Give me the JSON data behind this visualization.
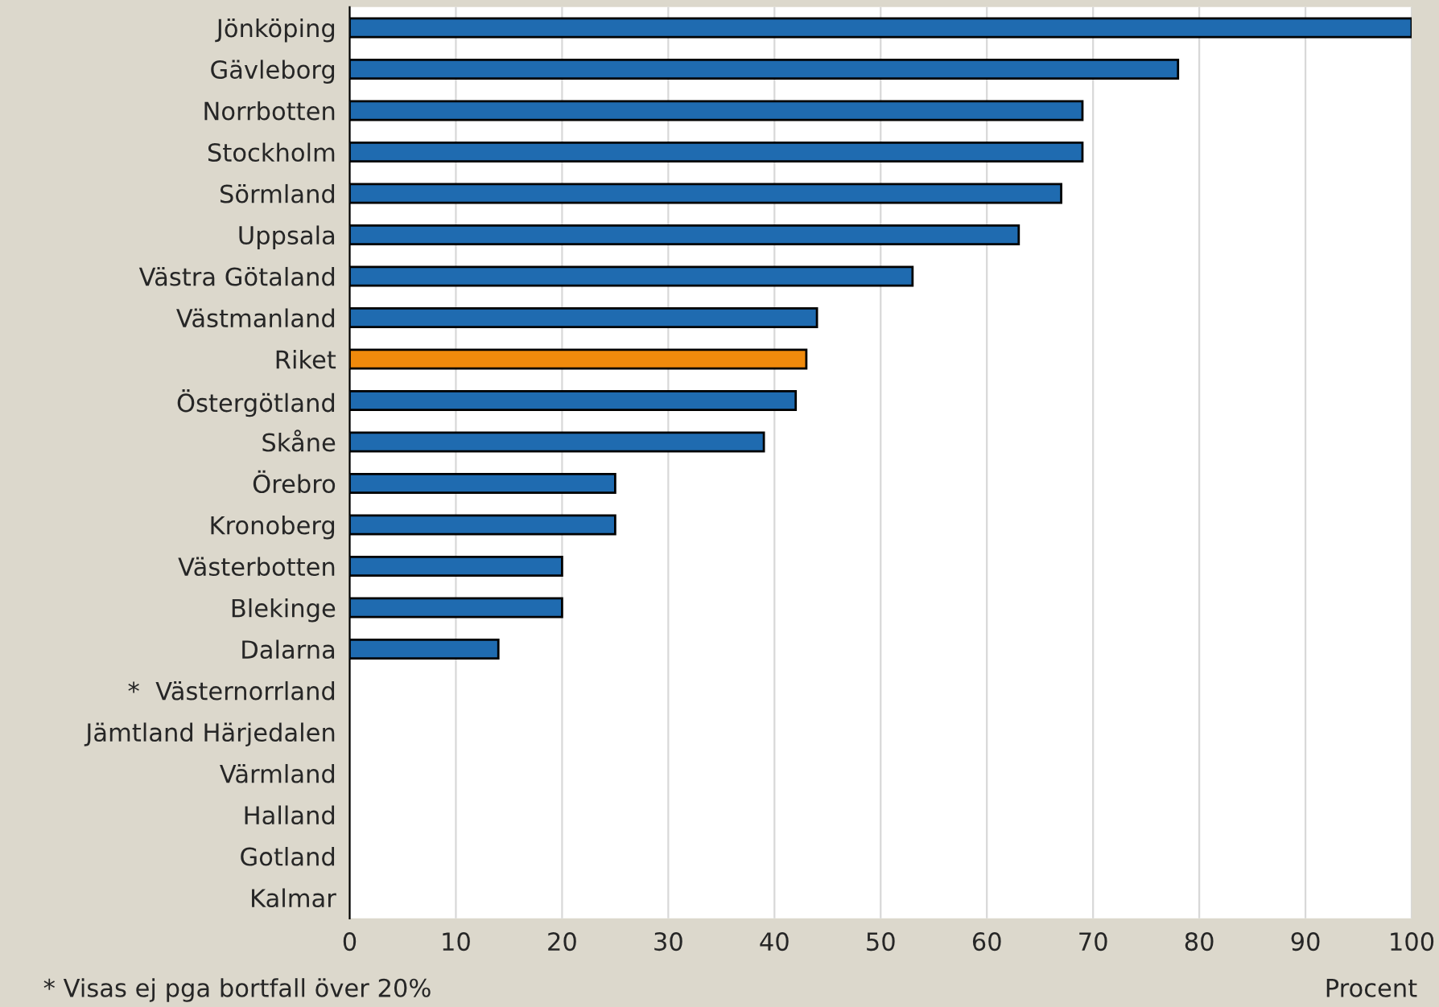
{
  "chart_data": {
    "type": "bar",
    "orientation": "horizontal",
    "categories": [
      "Jönköping",
      "Gävleborg",
      "Norrbotten",
      "Stockholm",
      "Sörmland",
      "Uppsala",
      "Västra Götaland",
      "Västmanland",
      "Riket",
      "Östergötland",
      "Skåne",
      "Örebro",
      "Kronoberg",
      "Västerbotten",
      "Blekinge",
      "Dalarna",
      "*  Västernorrland",
      "Jämtland Härjedalen",
      "Värmland",
      "Halland",
      "Gotland",
      "Kalmar"
    ],
    "values": [
      100,
      78,
      69,
      69,
      67,
      63,
      53,
      44,
      43,
      42,
      39,
      25,
      25,
      20,
      20,
      14,
      null,
      null,
      null,
      null,
      null,
      null
    ],
    "colors": [
      "#1f6bb0",
      "#1f6bb0",
      "#1f6bb0",
      "#1f6bb0",
      "#1f6bb0",
      "#1f6bb0",
      "#1f6bb0",
      "#1f6bb0",
      "#f08a0c",
      "#1f6bb0",
      "#1f6bb0",
      "#1f6bb0",
      "#1f6bb0",
      "#1f6bb0",
      "#1f6bb0",
      "#1f6bb0",
      "#1f6bb0",
      "#1f6bb0",
      "#1f6bb0",
      "#1f6bb0",
      "#1f6bb0",
      "#1f6bb0"
    ],
    "xlim": [
      0,
      100
    ],
    "xticks": [
      0,
      10,
      20,
      30,
      40,
      50,
      60,
      70,
      80,
      90,
      100
    ],
    "xlabel": "Procent",
    "grid": "x",
    "annotations": [
      "* Visas ej pga bortfall över 20%"
    ]
  }
}
